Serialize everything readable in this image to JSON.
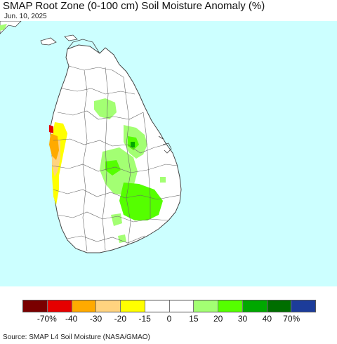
{
  "title": "SMAP Root Zone (0-100 cm) Soil Moisture Anomaly (%)",
  "date": "Jun. 10, 2025",
  "source": "Source: SMAP L4 Soil Moisture (NASA/GMAO)",
  "colors": {
    "sea": "#ccffff",
    "land": "#ffffff",
    "boundary": "#444444"
  },
  "legend": {
    "colors": [
      "#7a0000",
      "#e60000",
      "#ffaa00",
      "#ffd37f",
      "#ffff00",
      "#ffffff",
      "#ffffff",
      "#a3ff73",
      "#55ff00",
      "#00a800",
      "#006e00",
      "#1c3c9a"
    ],
    "ticks": [
      "-70%",
      "-40",
      "-30",
      "-20",
      "-15",
      "0",
      "15",
      "20",
      "30",
      "40",
      "70%"
    ]
  }
}
